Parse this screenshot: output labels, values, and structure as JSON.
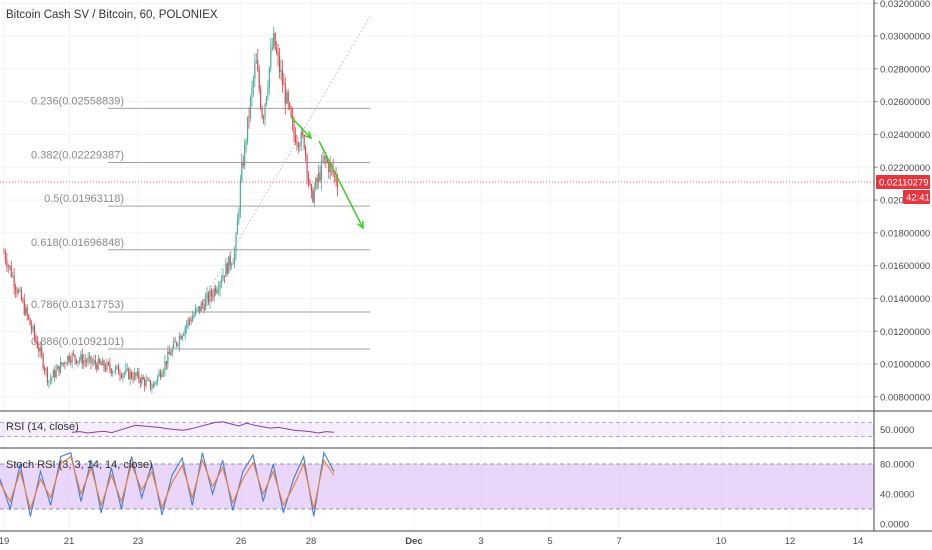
{
  "title": "Bitcoin Cash SV / Bitcoin, 60, POLONIEX",
  "colors": {
    "up": "#4bae9c",
    "down": "#e0474c",
    "fib": "#a0a0a0",
    "arrow": "#3ccf2a",
    "rsi": "#8e3da6",
    "band": "#e1c8f7",
    "price_tag": "#e8353b",
    "stoch_k": "#3d7edb",
    "stoch_d": "#f07e2a"
  },
  "labels": {
    "current_price": "0.02110279",
    "countdown": "42:41",
    "rsi": "RSI (14, close)",
    "stoch": "Stoch RSI (3, 3, 14, 14, close)"
  },
  "chart_data": [
    {
      "type": "candlestick",
      "title": "Bitcoin Cash SV / Bitcoin, 60, POLONIEX",
      "x_ticks": [
        "19",
        "21",
        "23",
        "26",
        "28",
        "Dec",
        "3",
        "5",
        "7",
        "10",
        "12",
        "14"
      ],
      "y_ticks": [
        "0.00800000",
        "0.01000000",
        "0.01200000",
        "0.01400000",
        "0.01600000",
        "0.01800000",
        "0.02000000",
        "0.02200000",
        "0.02400000",
        "0.02600000",
        "0.02800000",
        "0.03000000",
        "0.03200000"
      ],
      "ylim": [
        0.0072,
        0.0322
      ],
      "current_price": 0.02110279,
      "anchors": [
        {
          "x": "19",
          "price": 0.0168
        },
        {
          "x": "19.5",
          "price": 0.0139
        },
        {
          "x": "20",
          "price": 0.011
        },
        {
          "x": "20.3",
          "price": 0.009
        },
        {
          "x": "21",
          "price": 0.0105
        },
        {
          "x": "22",
          "price": 0.0098
        },
        {
          "x": "23",
          "price": 0.0092
        },
        {
          "x": "23.3",
          "price": 0.0086
        },
        {
          "x": "23.7",
          "price": 0.0102
        },
        {
          "x": "24.3",
          "price": 0.0125
        },
        {
          "x": "25",
          "price": 0.0142
        },
        {
          "x": "25.7",
          "price": 0.0168
        },
        {
          "x": "26",
          "price": 0.0214
        },
        {
          "x": "26.3",
          "price": 0.0285
        },
        {
          "x": "26.5",
          "price": 0.025
        },
        {
          "x": "26.8",
          "price": 0.0298
        },
        {
          "x": "27.4",
          "price": 0.024
        },
        {
          "x": "27.7",
          "price": 0.0236
        },
        {
          "x": "28",
          "price": 0.02
        },
        {
          "x": "28.3",
          "price": 0.0225
        },
        {
          "x": "28.7",
          "price": 0.0211
        }
      ],
      "fib_levels": [
        {
          "label": "0.236(0.02558839)",
          "price": 0.02558839
        },
        {
          "label": "0.382(0.02229387)",
          "price": 0.02229387
        },
        {
          "label": "0.5(0.01963118)",
          "price": 0.01963118
        },
        {
          "label": "0.618(0.01696848)",
          "price": 0.01696848
        },
        {
          "label": "0.786(0.01317753)",
          "price": 0.01317753
        },
        {
          "label": "0.886(0.01092101)",
          "price": 0.01092101
        }
      ]
    },
    {
      "type": "line",
      "title": "RSI (14, close)",
      "y_ticks": [
        "50.0000"
      ],
      "ylim": [
        0,
        100
      ],
      "bands": [
        30,
        70
      ],
      "values": [
        42,
        44,
        40,
        43,
        45,
        41,
        48,
        55,
        62,
        60,
        58,
        56,
        52,
        50,
        48,
        52,
        58,
        64,
        70,
        72,
        66,
        60,
        68,
        62,
        58,
        54,
        56,
        52,
        48,
        46,
        44,
        40,
        44,
        42
      ]
    },
    {
      "type": "line",
      "title": "Stoch RSI (3, 3, 14, 14, close)",
      "y_ticks": [
        "0.0000",
        "40.0000",
        "80.0000"
      ],
      "ylim": [
        -8,
        100
      ],
      "bands": [
        20,
        80
      ],
      "series": [
        {
          "values": [
            60,
            20,
            80,
            10,
            70,
            25,
            90,
            95,
            30,
            85,
            15,
            75,
            20,
            90,
            35,
            80,
            12,
            65,
            88,
            25,
            95,
            40,
            85,
            18,
            70,
            92,
            30,
            80,
            15,
            60,
            90,
            10,
            95,
            70
          ]
        },
        {
          "values": [
            55,
            30,
            70,
            20,
            60,
            35,
            80,
            90,
            40,
            75,
            25,
            65,
            30,
            80,
            45,
            70,
            22,
            55,
            78,
            35,
            85,
            50,
            75,
            28,
            60,
            82,
            40,
            70,
            25,
            50,
            80,
            20,
            85,
            65
          ]
        }
      ]
    }
  ]
}
